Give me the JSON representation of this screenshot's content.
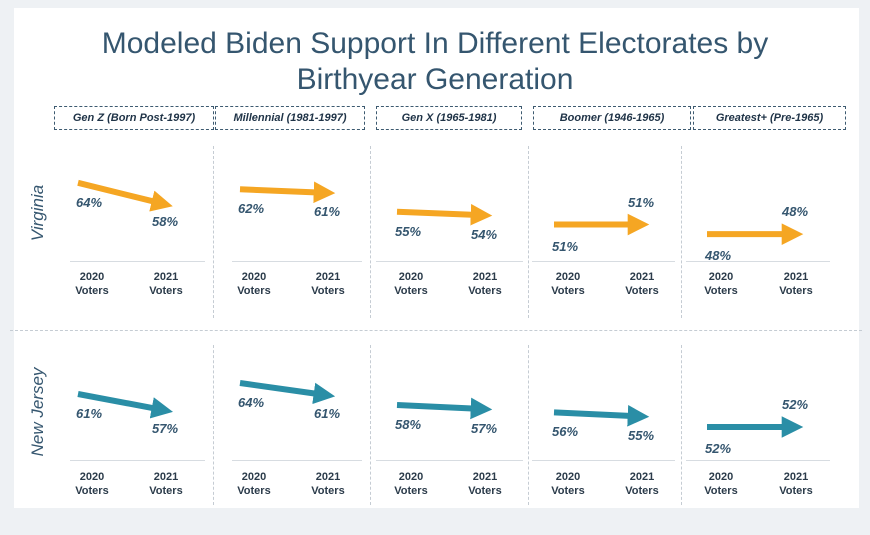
{
  "title_line1": "Modeled Biden Support In Different Electorates by",
  "title_line2": "Birthyear Generation",
  "generations": [
    "Gen Z  (Born Post-1997)",
    "Millennial (1981-1997)",
    "Gen X (1965-1981)",
    "Boomer (1946-1965)",
    "Greatest+ (Pre-1965)"
  ],
  "x_labels": {
    "a": "2020\nVoters",
    "b": "2021\nVoters"
  },
  "x_label_2020": "2020",
  "x_label_2021": "2021",
  "x_label_voters": "Voters",
  "colors": {
    "virginia": "#f5a623",
    "new_jersey": "#2a8ea6",
    "text": "#35566f"
  },
  "chart_data": [
    {
      "type": "line",
      "state": "Virginia",
      "categories": [
        "Gen Z  (Born Post-1997)",
        "Millennial (1981-1997)",
        "Gen X (1965-1981)",
        "Boomer (1946-1965)",
        "Greatest+ (Pre-1965)"
      ],
      "x": [
        "2020 Voters",
        "2021 Voters"
      ],
      "values_2020": [
        64,
        62,
        55,
        51,
        48
      ],
      "values_2021": [
        58,
        61,
        54,
        51,
        48
      ],
      "labels_2020": [
        "64%",
        "62%",
        "55%",
        "51%",
        "48%"
      ],
      "labels_2021": [
        "58%",
        "61%",
        "54%",
        "51%",
        "48%"
      ]
    },
    {
      "type": "line",
      "state": "New Jersey",
      "categories": [
        "Gen Z  (Born Post-1997)",
        "Millennial (1981-1997)",
        "Gen X (1965-1981)",
        "Boomer (1946-1965)",
        "Greatest+ (Pre-1965)"
      ],
      "x": [
        "2020 Voters",
        "2021 Voters"
      ],
      "values_2020": [
        61,
        64,
        58,
        56,
        52
      ],
      "values_2021": [
        57,
        61,
        57,
        55,
        52
      ],
      "labels_2020": [
        "61%",
        "64%",
        "58%",
        "56%",
        "52%"
      ],
      "labels_2021": [
        "57%",
        "61%",
        "57%",
        "55%",
        "52%"
      ]
    }
  ]
}
